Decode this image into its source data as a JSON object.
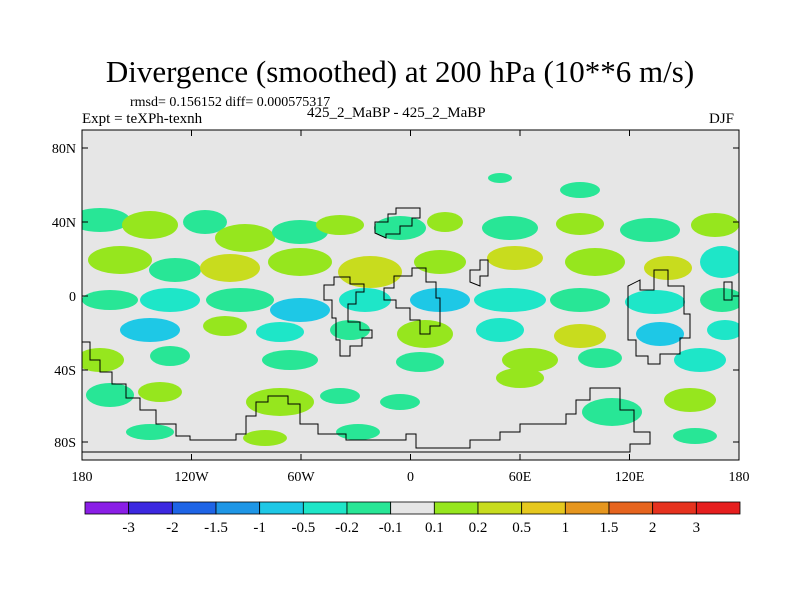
{
  "title": "Divergence (smoothed) at 200 hPa (10**6 m/s)",
  "stats": "rmsd= 0.156152 diff= 0.000575317",
  "experiment": "Expt = teXPh-texnh",
  "case": "425_2_MaBP - 425_2_MaBP",
  "season": "DJF",
  "y_ticks": [
    "80N",
    "40N",
    "0",
    "40S",
    "80S"
  ],
  "x_ticks": [
    "180",
    "120W",
    "60W",
    "0",
    "60E",
    "120E",
    "180"
  ],
  "colorbar": {
    "labels": [
      "-3",
      "-2",
      "-1.5",
      "-1",
      "-0.5",
      "-0.2",
      "-0.1",
      "0.1",
      "0.2",
      "0.5",
      "1",
      "1.5",
      "2",
      "3"
    ],
    "colors": [
      "#8a1ee6",
      "#3c28e0",
      "#1e64e6",
      "#1e96e6",
      "#1ec8e6",
      "#1ee6c8",
      "#28e696",
      "#e6e6e6",
      "#96e61e",
      "#c8dc1e",
      "#e6c81e",
      "#e6961e",
      "#e6641e",
      "#e6321e",
      "#e61e1e"
    ]
  },
  "field_colors": {
    "background": "#e6e6e6",
    "neg_weak": "#28e696",
    "neg_mid": "#1ee6c8",
    "neg_strong": "#1ec8e6",
    "pos_weak": "#96e61e",
    "pos_mid": "#c8dc1e"
  }
}
